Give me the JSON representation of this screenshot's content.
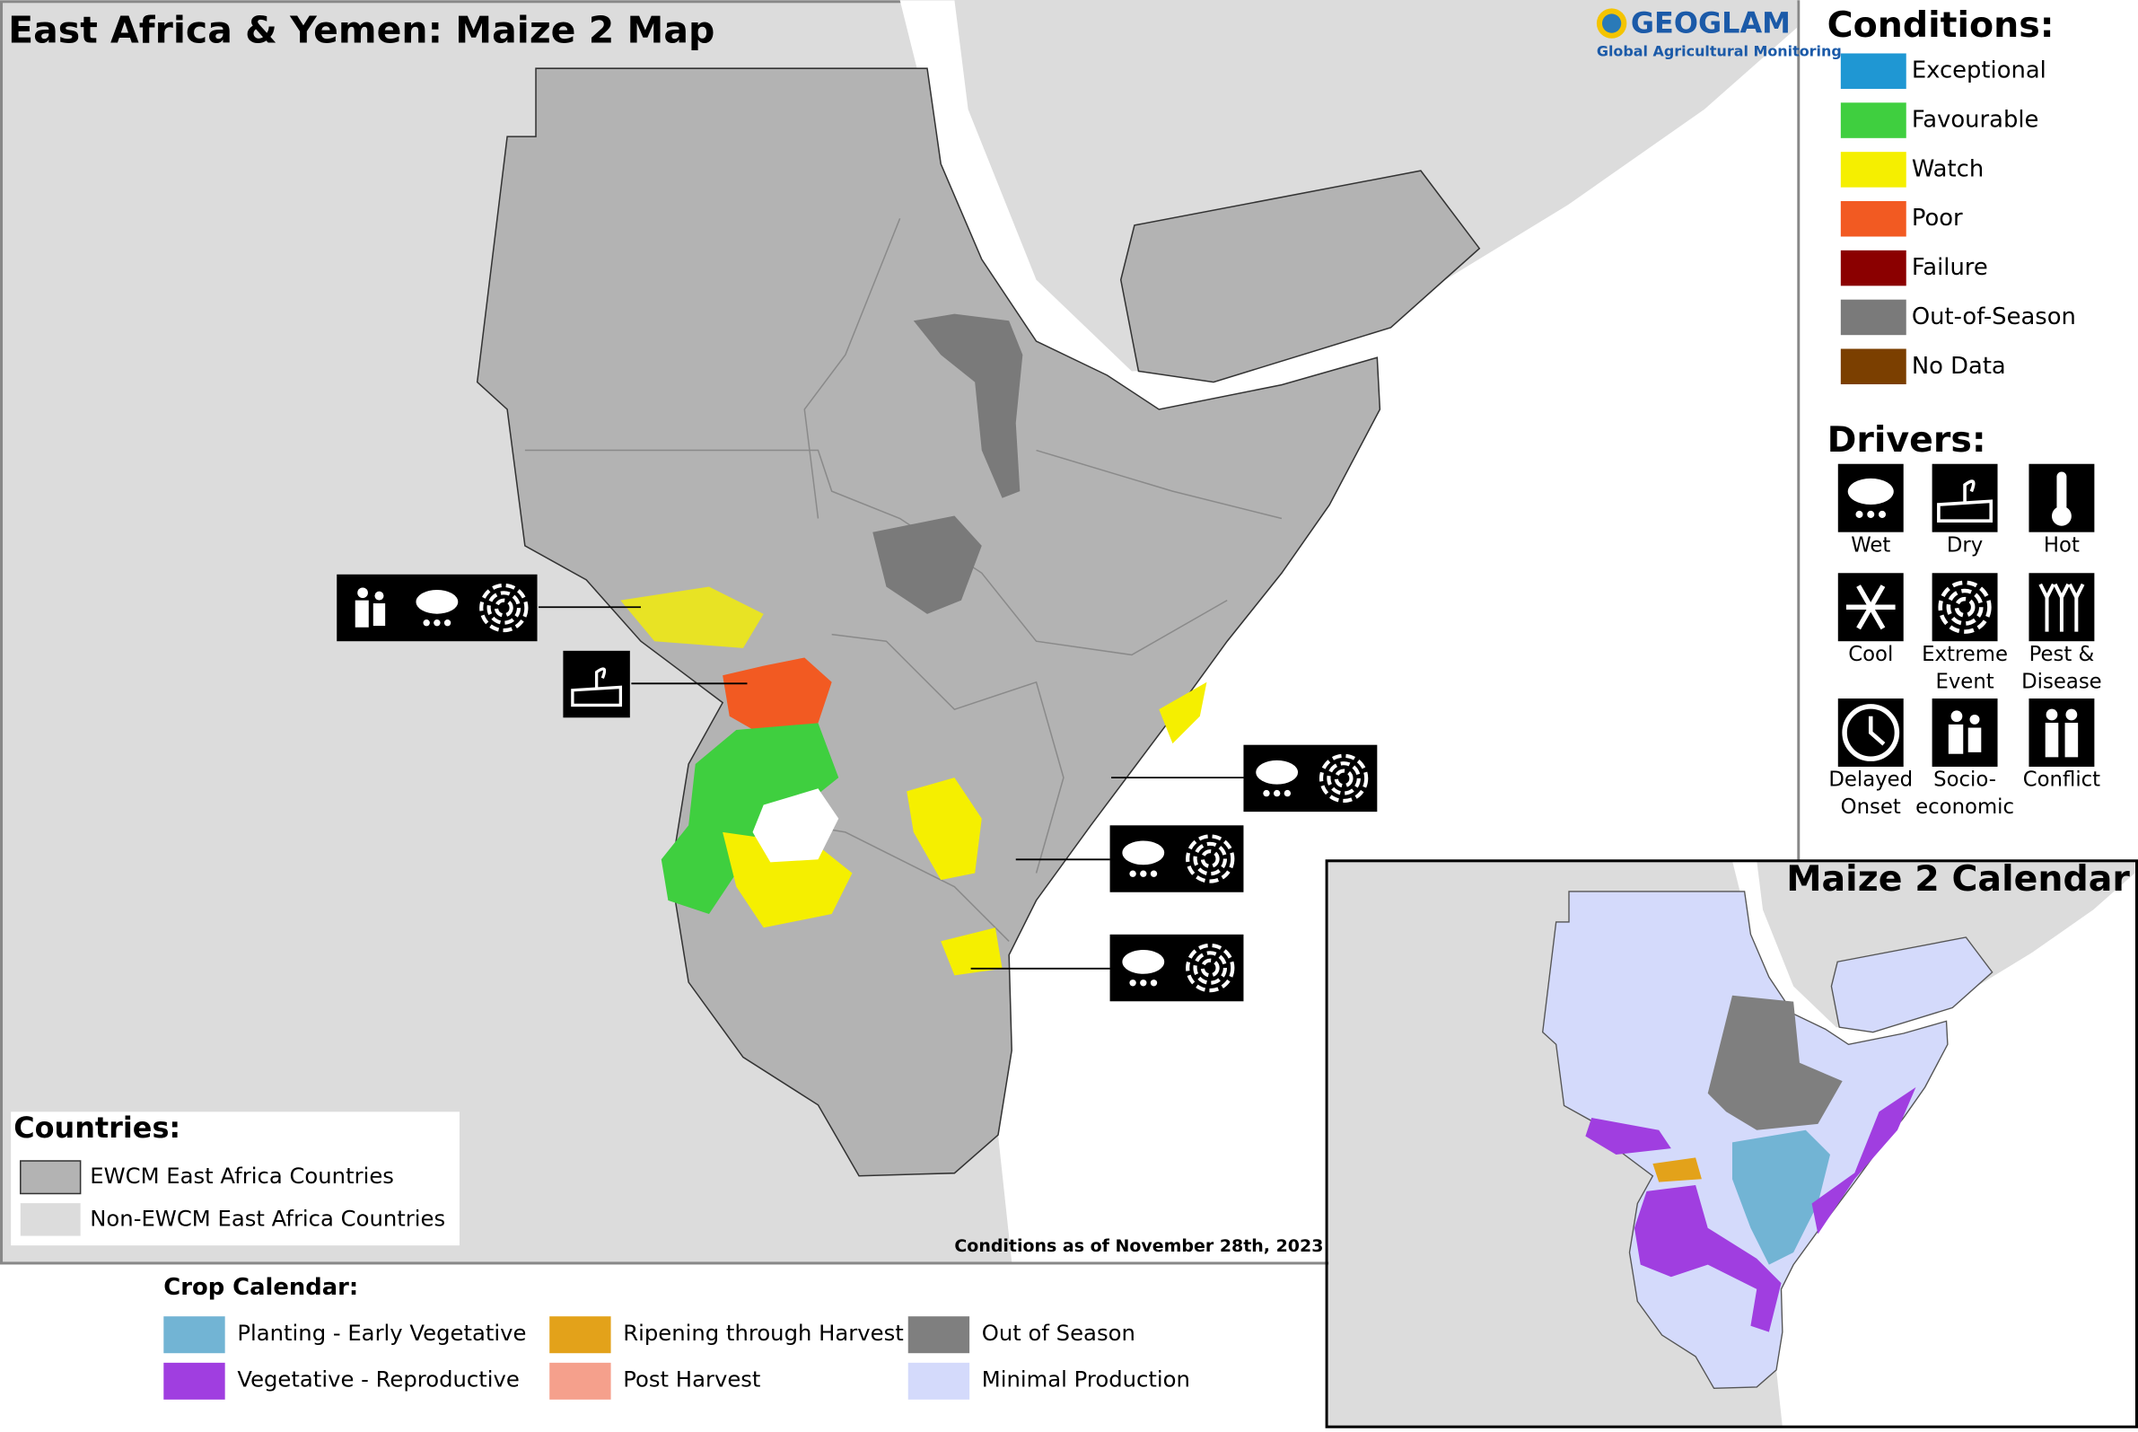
{
  "title": "East Africa & Yemen: Maize 2 Map",
  "logo": {
    "name": "GEOGLAM",
    "tagline": "Global Agricultural Monitoring"
  },
  "conditions": {
    "title": "Conditions:",
    "items": [
      {
        "label": "Exceptional",
        "color": "#1f97d3"
      },
      {
        "label": "Favourable",
        "color": "#3fcf3f"
      },
      {
        "label": "Watch",
        "color": "#f5ef00"
      },
      {
        "label": "Poor",
        "color": "#f25a22"
      },
      {
        "label": "Failure",
        "color": "#8b0000"
      },
      {
        "label": "Out-of-Season",
        "color": "#7a7a7a"
      },
      {
        "label": "No Data",
        "color": "#7b3f00"
      }
    ]
  },
  "drivers": {
    "title": "Drivers:",
    "items": [
      {
        "lines": [
          "Wet"
        ]
      },
      {
        "lines": [
          "Dry"
        ]
      },
      {
        "lines": [
          "Hot"
        ]
      },
      {
        "lines": [
          "Cool"
        ]
      },
      {
        "lines": [
          "Extreme",
          "Event"
        ]
      },
      {
        "lines": [
          "Pest &",
          "Disease"
        ]
      },
      {
        "lines": [
          "Delayed",
          "Onset"
        ]
      },
      {
        "lines": [
          "Socio-",
          "economic"
        ]
      },
      {
        "lines": [
          "Conflict"
        ]
      }
    ]
  },
  "countries": {
    "title": "Countries:",
    "items": [
      {
        "label": "EWCM East Africa Countries",
        "color": "#b3b3b3"
      },
      {
        "label": "Non-EWCM East Africa Countries",
        "color": "#dcdcdc"
      }
    ]
  },
  "crop_calendar": {
    "title": "Crop Calendar:",
    "items": [
      {
        "label": "Planting - Early Vegetative",
        "color": "#72b4d4"
      },
      {
        "label": "Vegetative - Reproductive",
        "color": "#a03ee0"
      },
      {
        "label": "Ripening through Harvest",
        "color": "#e3a21a"
      },
      {
        "label": "Post Harvest",
        "color": "#f5a08c"
      },
      {
        "label": "Out of Season",
        "color": "#7f7f7f"
      },
      {
        "label": "Minimal Production",
        "color": "#d4dafb"
      }
    ]
  },
  "note": "Conditions as of November 28th, 2023",
  "inset": {
    "title": "Maize 2 Calendar"
  }
}
